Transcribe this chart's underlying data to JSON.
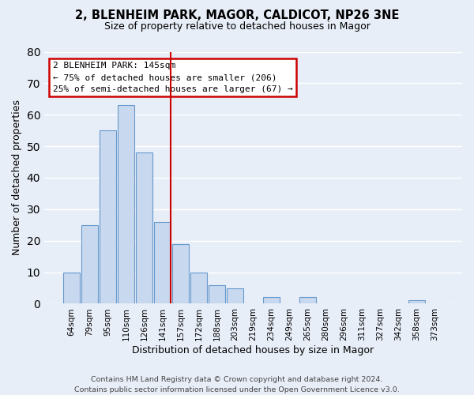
{
  "title": "2, BLENHEIM PARK, MAGOR, CALDICOT, NP26 3NE",
  "subtitle": "Size of property relative to detached houses in Magor",
  "xlabel": "Distribution of detached houses by size in Magor",
  "ylabel": "Number of detached properties",
  "bar_labels": [
    "64sqm",
    "79sqm",
    "95sqm",
    "110sqm",
    "126sqm",
    "141sqm",
    "157sqm",
    "172sqm",
    "188sqm",
    "203sqm",
    "219sqm",
    "234sqm",
    "249sqm",
    "265sqm",
    "280sqm",
    "296sqm",
    "311sqm",
    "327sqm",
    "342sqm",
    "358sqm",
    "373sqm"
  ],
  "bar_values": [
    10,
    25,
    55,
    63,
    48,
    26,
    19,
    10,
    6,
    5,
    0,
    2,
    0,
    2,
    0,
    0,
    0,
    0,
    0,
    1,
    0
  ],
  "bar_color": "#c8d8ee",
  "bar_edge_color": "#6699cc",
  "highlight_color": "#cc0000",
  "annotation_line1": "2 BLENHEIM PARK: 145sqm",
  "annotation_line2": "← 75% of detached houses are smaller (206)",
  "annotation_line3": "25% of semi-detached houses are larger (67) →",
  "annotation_box_color": "#ffffff",
  "annotation_box_edge": "#cc0000",
  "ylim": [
    0,
    80
  ],
  "yticks": [
    0,
    10,
    20,
    30,
    40,
    50,
    60,
    70,
    80
  ],
  "footer_line1": "Contains HM Land Registry data © Crown copyright and database right 2024.",
  "footer_line2": "Contains public sector information licensed under the Open Government Licence v3.0.",
  "bg_color": "#e8eef8",
  "grid_color": "#ffffff",
  "title_fontsize": 10.5,
  "subtitle_fontsize": 9,
  "axis_label_fontsize": 9,
  "tick_fontsize": 7.5,
  "footer_fontsize": 6.8,
  "annot_fontsize": 8
}
